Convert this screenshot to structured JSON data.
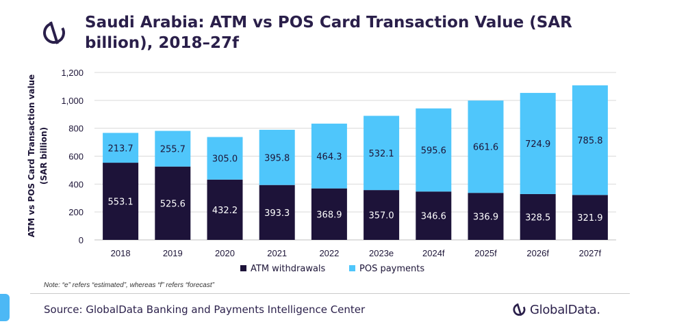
{
  "title": "Saudi Arabia: ATM vs POS Card Transaction Value (SAR billion), 2018–27f",
  "note": "Note: “e” refers “estimated”, whereas “f” refers “forecast”",
  "source": "Source: GlobalData Banking and Payments Intelligence Center",
  "brand": "GlobalData.",
  "colors": {
    "atm": "#1d1339",
    "pos": "#4fc6fb",
    "grid": "#d9d9d9",
    "text": "#1c1437"
  },
  "chart_data": {
    "type": "bar",
    "stacked": true,
    "categories": [
      "2018",
      "2019",
      "2020",
      "2021",
      "2022",
      "2023e",
      "2024f",
      "2025f",
      "2026f",
      "2027f"
    ],
    "series": [
      {
        "name": "ATM withdrawals",
        "values": [
          553.1,
          525.6,
          432.2,
          393.3,
          368.9,
          357.0,
          346.6,
          336.9,
          328.5,
          321.9
        ]
      },
      {
        "name": "POS payments",
        "values": [
          213.7,
          255.7,
          305.0,
          395.8,
          464.3,
          532.1,
          595.6,
          661.6,
          724.9,
          785.8
        ]
      }
    ],
    "ylabel": "ATM vs POS Card Transaction value (SAR billion)",
    "xlabel": "",
    "ylim": [
      0,
      1200
    ],
    "yticks": [
      "0",
      "200",
      "400",
      "600",
      "800",
      "1,000",
      "1,200"
    ],
    "grid": true,
    "legend": "bottom"
  }
}
